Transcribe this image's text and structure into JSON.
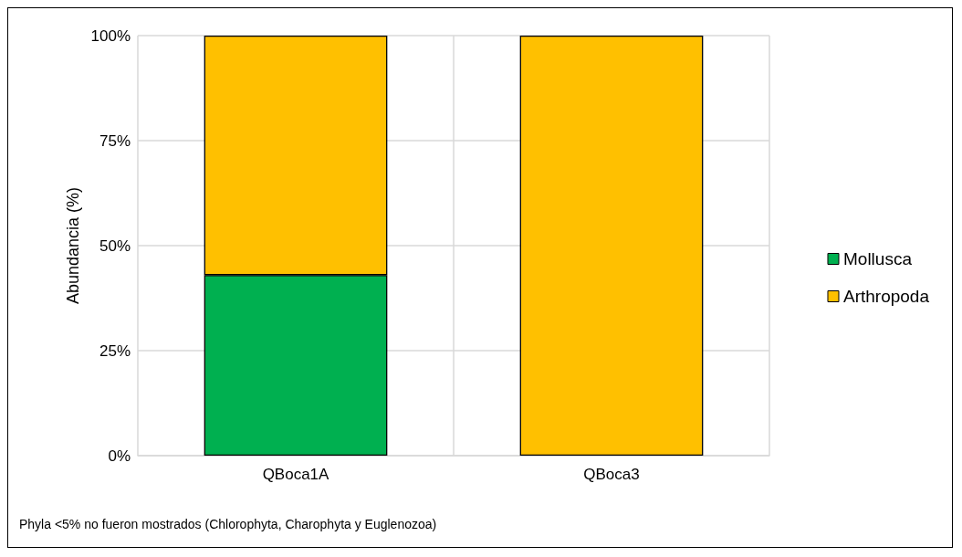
{
  "chart_data": {
    "type": "bar",
    "stacked": true,
    "ylabel": "Abundancia (%)",
    "categories": [
      "QBoca1A",
      "QBoca3"
    ],
    "series": [
      {
        "name": "Mollusca",
        "color": "#00b050",
        "values": [
          43,
          0
        ]
      },
      {
        "name": "Arthropoda",
        "color": "#ffc000",
        "values": [
          57,
          100
        ]
      }
    ],
    "ylim": [
      0,
      100
    ],
    "yticks": [
      {
        "value": 0,
        "label": "0%"
      },
      {
        "value": 25,
        "label": "25%"
      },
      {
        "value": 50,
        "label": "50%"
      },
      {
        "value": 75,
        "label": "75%"
      },
      {
        "value": 100,
        "label": "100%"
      }
    ],
    "grid": true,
    "legend": "right",
    "annotations": [
      "Phyla <5% no fueron mostrados (Chlorophyta, Charophyta y Euglenozoa)"
    ]
  }
}
